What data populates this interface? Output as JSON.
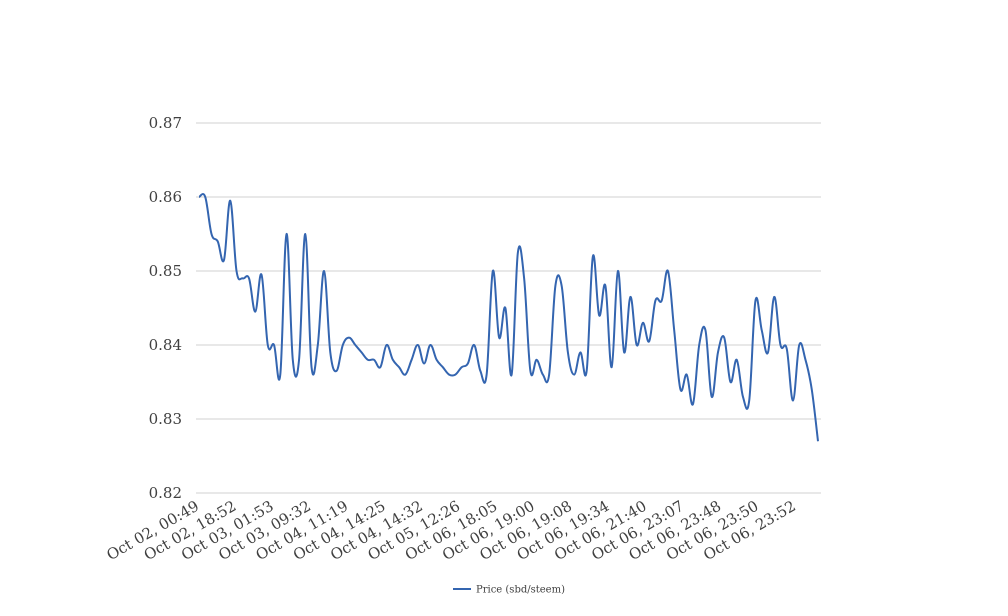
{
  "chart_data": {
    "type": "line",
    "title": "",
    "xlabel": "",
    "ylabel": "",
    "ylim": [
      0.82,
      0.87
    ],
    "yticks": [
      "0.82",
      "0.83",
      "0.84",
      "0.85",
      "0.86",
      "0.87"
    ],
    "grid": "horizontal",
    "legend_position": "bottom",
    "x_tick_labels": [
      "Oct 02, 00:49",
      "Oct 02, 18:52",
      "Oct 03, 01:53",
      "Oct 03, 09:32",
      "Oct 04, 11:19",
      "Oct 04, 14:25",
      "Oct 04, 14:32",
      "Oct 05, 12:26",
      "Oct 06, 18:05",
      "Oct 06, 19:00",
      "Oct 06, 19:08",
      "Oct 06, 19:34",
      "Oct 06, 21:40",
      "Oct 06, 23:07",
      "Oct 06, 23:48",
      "Oct 06, 23:50",
      "Oct 06, 23:52"
    ],
    "series": [
      {
        "name": "Price (sbd/steem)",
        "color": "#3465b0",
        "values": [
          0.86,
          0.86,
          0.855,
          0.854,
          0.8515,
          0.8595,
          0.85,
          0.849,
          0.849,
          0.8445,
          0.8495,
          0.84,
          0.84,
          0.836,
          0.855,
          0.838,
          0.838,
          0.855,
          0.837,
          0.84,
          0.85,
          0.839,
          0.8365,
          0.84,
          0.841,
          0.84,
          0.839,
          0.838,
          0.838,
          0.837,
          0.84,
          0.838,
          0.837,
          0.836,
          0.838,
          0.84,
          0.8375,
          0.84,
          0.838,
          0.837,
          0.836,
          0.836,
          0.837,
          0.8375,
          0.84,
          0.8365,
          0.836,
          0.85,
          0.841,
          0.845,
          0.836,
          0.8525,
          0.849,
          0.8365,
          0.838,
          0.836,
          0.836,
          0.848,
          0.848,
          0.839,
          0.836,
          0.839,
          0.8365,
          0.852,
          0.844,
          0.848,
          0.837,
          0.85,
          0.839,
          0.8465,
          0.84,
          0.843,
          0.8405,
          0.846,
          0.846,
          0.85,
          0.842,
          0.834,
          0.836,
          0.832,
          0.84,
          0.842,
          0.833,
          0.839,
          0.841,
          0.835,
          0.838,
          0.833,
          0.8325,
          0.846,
          0.842,
          0.839,
          0.8465,
          0.84,
          0.8395,
          0.8325,
          0.84,
          0.838,
          0.834,
          0.827
        ]
      }
    ]
  }
}
